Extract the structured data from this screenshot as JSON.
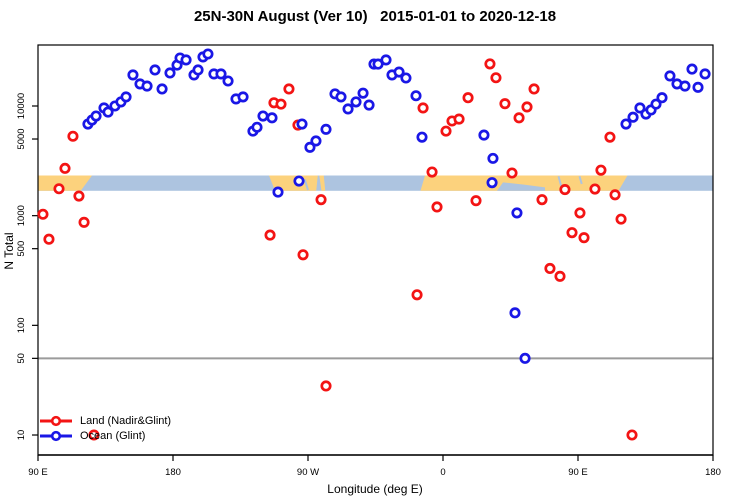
{
  "title": "25N-30N August (Ver 10)   2015-01-01 to 2020-12-18",
  "x_axis": {
    "label": "Longitude (deg E)",
    "ticks": [
      {
        "lon": 90,
        "label": "90 E"
      },
      {
        "lon": 180,
        "label": "180"
      },
      {
        "lon": 270,
        "label": "90 W"
      },
      {
        "lon": 360,
        "label": "0"
      },
      {
        "lon": 450,
        "label": "90 E"
      },
      {
        "lon": 540,
        "label": "180"
      }
    ]
  },
  "y_axis": {
    "label": "N Total",
    "scale": "log",
    "ticks": [
      {
        "value": 10000,
        "label": "10000"
      },
      {
        "value": 5000,
        "label": "5000"
      },
      {
        "value": 1000,
        "label": "1000"
      },
      {
        "value": 500,
        "label": "500"
      },
      {
        "value": 100,
        "label": "100"
      },
      {
        "value": 50,
        "label": "50"
      },
      {
        "value": 10,
        "label": "10"
      }
    ]
  },
  "reference_line": {
    "value": 50,
    "color": "#9b9b9b"
  },
  "legend": {
    "items": [
      {
        "label": "Land (Nadir&Glint)",
        "color": "#f31414"
      },
      {
        "label": "Ocean (Glint)",
        "color": "#1a17e6"
      }
    ]
  },
  "map_strip": {
    "meaning": "land/ocean geography band drawn across the plot near N=2000",
    "center_value": 2000,
    "ocean_color": "#adc4e0",
    "land_color": "#fcd27d",
    "land_segments": [
      {
        "top_from": 90,
        "top_to": 126,
        "bot_from": 90,
        "bot_to": 118.5
      },
      {
        "top_from": 244,
        "top_to": 276.5,
        "bot_from": 248,
        "bot_to": 275.5
      },
      {
        "top_from": 277.5,
        "top_to": 280.5,
        "bot_from": 279,
        "bot_to": 281.5
      },
      {
        "top_from": 348,
        "top_to": 483,
        "bot_from": 345,
        "bot_to": 477
      }
    ],
    "ocean_inlets": [
      {
        "type": "poly",
        "pts": [
          [
            396,
            1
          ],
          [
            400,
            0.45
          ],
          [
            414,
            0.6
          ],
          [
            428,
            0.78
          ],
          [
            428,
            1
          ]
        ]
      },
      {
        "type": "line",
        "from": [
          437,
          0.05
        ],
        "to": [
          439.5,
          0.95
        ]
      },
      {
        "type": "line",
        "from": [
          451,
          0.05
        ],
        "to": [
          452.5,
          0.55
        ]
      },
      {
        "type": "line",
        "from": [
          267.8,
          0.25
        ],
        "to": [
          270,
          0.95
        ]
      }
    ]
  },
  "chart_data": {
    "type": "scatter",
    "xlabel": "Longitude (deg E)",
    "ylabel": "N Total",
    "x_range_deg_continuous": [
      90,
      540
    ],
    "y_range": [
      6,
      36000
    ],
    "y_scale": "log",
    "grid": false,
    "legend_position": "bottom-left",
    "series": [
      {
        "name": "Land (Nadir&Glint)",
        "color": "#f31414",
        "points": [
          [
            113.3,
            5300
          ],
          [
            108,
            2700
          ],
          [
            104,
            1760
          ],
          [
            117.3,
            1510
          ],
          [
            93.3,
            1030
          ],
          [
            120.7,
            870
          ],
          [
            97.3,
            610
          ],
          [
            257.3,
            14300
          ],
          [
            247.3,
            10700
          ],
          [
            252,
            10400
          ],
          [
            263.3,
            6700
          ],
          [
            278.7,
            1400
          ],
          [
            244.7,
            665
          ],
          [
            266.7,
            440
          ],
          [
            346.7,
            9600
          ],
          [
            362,
            5900
          ],
          [
            366,
            7300
          ],
          [
            370.7,
            7600
          ],
          [
            376.7,
            11900
          ],
          [
            391.3,
            24200
          ],
          [
            395.3,
            18100
          ],
          [
            420.7,
            14300
          ],
          [
            401.3,
            10500
          ],
          [
            416,
            9800
          ],
          [
            410.7,
            7800
          ],
          [
            352.7,
            2500
          ],
          [
            406,
            2450
          ],
          [
            356,
            1200
          ],
          [
            382,
            1370
          ],
          [
            426,
            1400
          ],
          [
            471.3,
            5200
          ],
          [
            465.3,
            2600
          ],
          [
            461.3,
            1750
          ],
          [
            441.3,
            1730
          ],
          [
            474.7,
            1550
          ],
          [
            451.3,
            1060
          ],
          [
            478.7,
            930
          ],
          [
            446,
            700
          ],
          [
            454,
            630
          ],
          [
            282,
            28
          ],
          [
            127.3,
            10
          ],
          [
            342.7,
            190
          ],
          [
            431.3,
            330
          ],
          [
            438,
            280
          ],
          [
            486,
            10
          ]
        ]
      },
      {
        "name": "Ocean (Glint)",
        "color": "#1a17e6",
        "points": [
          [
            123.3,
            6850
          ],
          [
            126,
            7450
          ],
          [
            128.7,
            8100
          ],
          [
            134,
            9600
          ],
          [
            136.7,
            8800
          ],
          [
            141.3,
            10000
          ],
          [
            145.3,
            10900
          ],
          [
            148.7,
            12100
          ],
          [
            153.3,
            19200
          ],
          [
            158,
            15900
          ],
          [
            162.7,
            15200
          ],
          [
            168,
            21300
          ],
          [
            172.7,
            14300
          ],
          [
            178,
            20000
          ],
          [
            182.7,
            23600
          ],
          [
            184.7,
            27400
          ],
          [
            188.7,
            26300
          ],
          [
            194,
            19200
          ],
          [
            196.7,
            21300
          ],
          [
            200,
            28000
          ],
          [
            203.3,
            29800
          ],
          [
            207.3,
            19600
          ],
          [
            212,
            19600
          ],
          [
            216.7,
            16900
          ],
          [
            222,
            11600
          ],
          [
            226.7,
            12100
          ],
          [
            233.3,
            5900
          ],
          [
            236,
            6400
          ],
          [
            240,
            8100
          ],
          [
            246,
            7800
          ],
          [
            266,
            6850
          ],
          [
            271.3,
            4200
          ],
          [
            275.3,
            4800
          ],
          [
            282,
            6130
          ],
          [
            288,
            12900
          ],
          [
            292,
            12100
          ],
          [
            296.7,
            9400
          ],
          [
            302,
            10900
          ],
          [
            306.7,
            13100
          ],
          [
            310.7,
            10200
          ],
          [
            314,
            24100
          ],
          [
            264,
            2070
          ],
          [
            250,
            1640
          ],
          [
            316.7,
            24100
          ],
          [
            322,
            26300
          ],
          [
            326,
            19200
          ],
          [
            330.7,
            20400
          ],
          [
            335.3,
            18000
          ],
          [
            342,
            12400
          ],
          [
            346,
            5200
          ],
          [
            387.3,
            5430
          ],
          [
            393.3,
            3330
          ],
          [
            392.7,
            2000
          ],
          [
            409.3,
            1060
          ],
          [
            482,
            6850
          ],
          [
            486.7,
            7900
          ],
          [
            491.3,
            9600
          ],
          [
            495.3,
            8450
          ],
          [
            498.7,
            9200
          ],
          [
            502,
            10400
          ],
          [
            506,
            11900
          ],
          [
            511.3,
            18800
          ],
          [
            516,
            15900
          ],
          [
            521.3,
            15200
          ],
          [
            526,
            21700
          ],
          [
            530,
            14800
          ],
          [
            534.7,
            19600
          ],
          [
            408,
            130
          ],
          [
            414.7,
            50
          ]
        ]
      }
    ]
  }
}
